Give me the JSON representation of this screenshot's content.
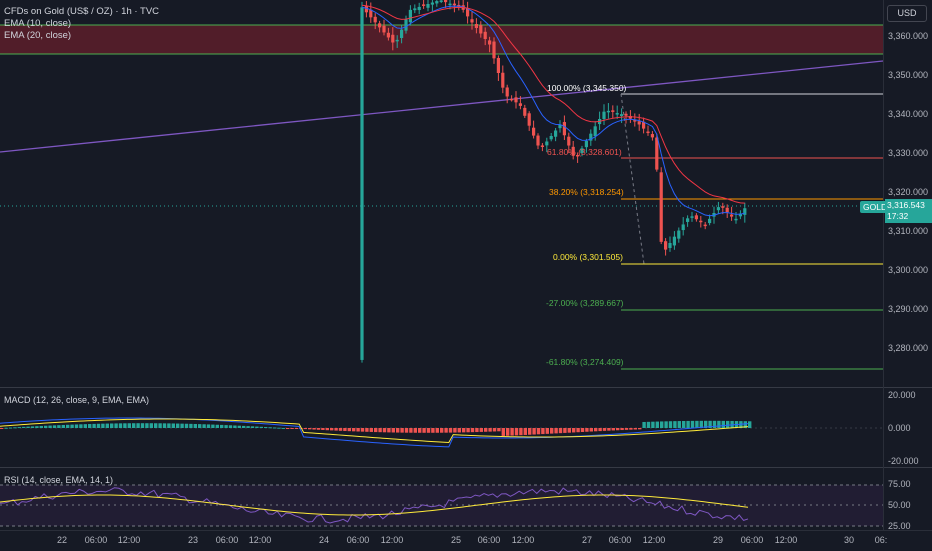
{
  "header": {
    "symbol_title": "CFDs on Gold (US$ / OZ) · 1h · TVC",
    "ema10_label": "EMA (10, close)",
    "ema20_label": "EMA (20, close)"
  },
  "currency_button": "USD",
  "price_axis": {
    "labels": [
      "3,360.000",
      "3,350.000",
      "3,340.000",
      "3,330.000",
      "3,320.000",
      "3,310.000",
      "3,300.000",
      "3,290.000",
      "3,280.000"
    ]
  },
  "current_price": {
    "symbol": "GOLD",
    "price": "3,316.543",
    "countdown": "17:32",
    "color": "#26a69a"
  },
  "fib_levels": [
    {
      "text": "100.00% (3,345.350)",
      "color": "#ffffff"
    },
    {
      "text": "61.80% (3,328.601)",
      "color": "#ef5350"
    },
    {
      "text": "38.20% (3,318.254)",
      "color": "#ff9800"
    },
    {
      "text": "0.00% (3,301.505)",
      "color": "#ffeb3b"
    },
    {
      "text": "-27.00% (3,289.667)",
      "color": "#4caf50"
    },
    {
      "text": "-61.80% (3,274.409)",
      "color": "#4caf50"
    }
  ],
  "macd": {
    "title": "MACD (12, 26, close, 9, EMA, EMA)",
    "axis": [
      "20.000",
      "0.000",
      "-20.000"
    ]
  },
  "rsi": {
    "title": "RSI (14, close, EMA, 14, 1)",
    "axis": [
      "75.00",
      "50.00",
      "25.00"
    ]
  },
  "time_axis": {
    "labels": [
      "22",
      "06:00",
      "12:00",
      "23",
      "06:00",
      "12:00",
      "24",
      "06:00",
      "12:00",
      "25",
      "06:00",
      "12:00",
      "27",
      "06:00",
      "12:00",
      "29",
      "06:00",
      "12:00",
      "30",
      "06:"
    ]
  },
  "colors": {
    "background": "#161a25",
    "bull": "#26a69a",
    "bear": "#ef5350",
    "ema10": "#2962ff",
    "ema20": "#f23645",
    "trendline": "#7e57c2",
    "zone": "#5c1f2a"
  }
}
